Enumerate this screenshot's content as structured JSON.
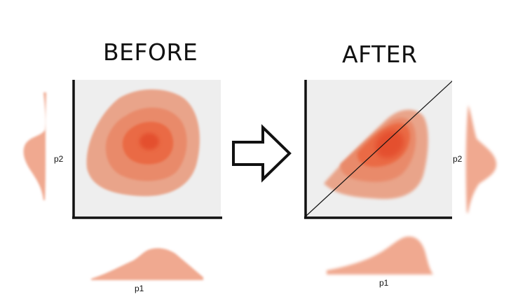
{
  "before": {
    "title": "BEFORE",
    "x_label": "p1",
    "y_label": "p2"
  },
  "after": {
    "title": "AFTER",
    "x_label": "p1",
    "y_label": "p2"
  },
  "arrow": {
    "icon": "right-arrow-icon"
  },
  "colors": {
    "panel_background": "#eeeeee",
    "axis": "#111111",
    "contour_outer": "#e9a48a",
    "contour_mid": "#e98a6a",
    "contour_inner": "#ea6a45",
    "contour_core": "#e4502d",
    "marginal": "#f0a990"
  }
}
